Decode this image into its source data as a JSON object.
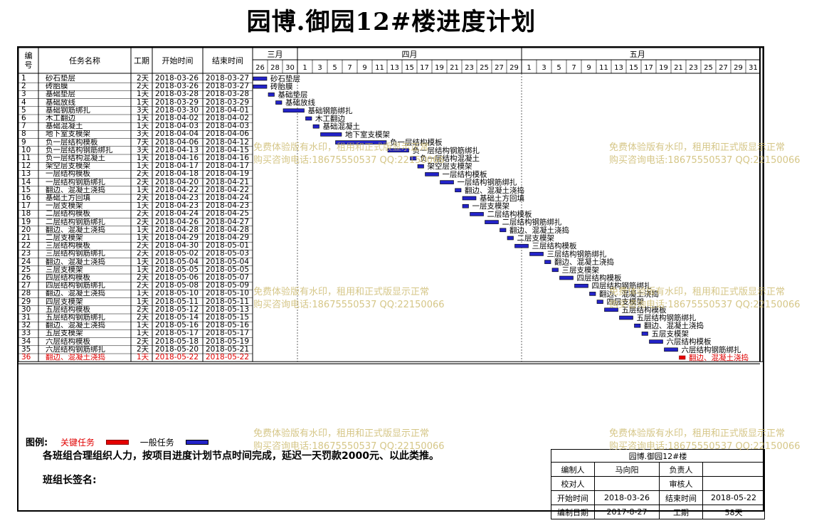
{
  "title": "园博.御园12#楼进度计划",
  "columns": {
    "no": "编号",
    "name": "任务名称",
    "dur": "工期",
    "start": "开始时间",
    "end": "结束时间"
  },
  "months": [
    {
      "label": "三月",
      "from": 0,
      "to": 6
    },
    {
      "label": "四月",
      "from": 6,
      "to": 36
    },
    {
      "label": "五月",
      "from": 36,
      "to": 67
    }
  ],
  "day_ticks": [
    "26",
    "28",
    "30",
    "1",
    "3",
    "5",
    "7",
    "9",
    "11",
    "13",
    "15",
    "17",
    "19",
    "21",
    "23",
    "25",
    "27",
    "29",
    "1",
    "3",
    "5",
    "7",
    "9",
    "11",
    "13",
    "15",
    "17",
    "19",
    "21",
    "23",
    "25",
    "27",
    "29",
    "31"
  ],
  "tasks": [
    {
      "no": "1",
      "name": "砂石垫层",
      "dur": "2天",
      "start": "2018-03-26",
      "end": "2018-03-27",
      "s": 0,
      "d": 2,
      "critical": false
    },
    {
      "no": "2",
      "name": "砖胎膜",
      "dur": "2天",
      "start": "2018-03-26",
      "end": "2018-03-27",
      "s": 0,
      "d": 2,
      "critical": false
    },
    {
      "no": "3",
      "name": "基础垫层",
      "dur": "1天",
      "start": "2018-03-28",
      "end": "2018-03-28",
      "s": 2,
      "d": 1,
      "critical": false
    },
    {
      "no": "4",
      "name": "基础放线",
      "dur": "1天",
      "start": "2018-03-29",
      "end": "2018-03-29",
      "s": 3,
      "d": 1,
      "critical": false
    },
    {
      "no": "5",
      "name": "基础钢筋绑扎",
      "dur": "3天",
      "start": "2018-03-30",
      "end": "2018-04-01",
      "s": 4,
      "d": 3,
      "critical": false
    },
    {
      "no": "6",
      "name": "木工翻边",
      "dur": "1天",
      "start": "2018-04-02",
      "end": "2018-04-02",
      "s": 7,
      "d": 1,
      "critical": false
    },
    {
      "no": "7",
      "name": "基础混凝土",
      "dur": "1天",
      "start": "2018-04-03",
      "end": "2018-04-03",
      "s": 8,
      "d": 1,
      "critical": false
    },
    {
      "no": "8",
      "name": "地下室支模架",
      "dur": "3天",
      "start": "2018-04-04",
      "end": "2018-04-06",
      "s": 9,
      "d": 3,
      "critical": false
    },
    {
      "no": "9",
      "name": "负一层结构模板",
      "dur": "7天",
      "start": "2018-04-06",
      "end": "2018-04-12",
      "s": 11,
      "d": 7,
      "critical": false
    },
    {
      "no": "10",
      "name": "负一层结构钢筋绑扎",
      "dur": "3天",
      "start": "2018-04-13",
      "end": "2018-04-15",
      "s": 18,
      "d": 3,
      "critical": false
    },
    {
      "no": "11",
      "name": "负一层结构混凝土",
      "dur": "1天",
      "start": "2018-04-16",
      "end": "2018-04-16",
      "s": 21,
      "d": 1,
      "critical": false
    },
    {
      "no": "12",
      "name": "架空层支模架",
      "dur": "1天",
      "start": "2018-04-17",
      "end": "2018-04-17",
      "s": 22,
      "d": 1,
      "critical": false
    },
    {
      "no": "13",
      "name": "一层结构模板",
      "dur": "2天",
      "start": "2018-04-18",
      "end": "2018-04-19",
      "s": 23,
      "d": 2,
      "critical": false
    },
    {
      "no": "14",
      "name": "一层结构钢筋绑扎",
      "dur": "2天",
      "start": "2018-04-20",
      "end": "2018-04-21",
      "s": 25,
      "d": 2,
      "critical": false
    },
    {
      "no": "15",
      "name": "翻边、混凝土浇捣",
      "dur": "1天",
      "start": "2018-04-22",
      "end": "2018-04-22",
      "s": 27,
      "d": 1,
      "critical": false
    },
    {
      "no": "16",
      "name": "基础土方回填",
      "dur": "2天",
      "start": "2018-04-23",
      "end": "2018-04-24",
      "s": 28,
      "d": 2,
      "critical": false
    },
    {
      "no": "17",
      "name": "一层支模架",
      "dur": "1天",
      "start": "2018-04-23",
      "end": "2018-04-23",
      "s": 28,
      "d": 1,
      "critical": false
    },
    {
      "no": "18",
      "name": "二层结构模板",
      "dur": "2天",
      "start": "2018-04-24",
      "end": "2018-04-25",
      "s": 29,
      "d": 2,
      "critical": false
    },
    {
      "no": "19",
      "name": "二层结构钢筋绑扎",
      "dur": "2天",
      "start": "2018-04-26",
      "end": "2018-04-27",
      "s": 31,
      "d": 2,
      "critical": false
    },
    {
      "no": "20",
      "name": "翻边、混凝土浇捣",
      "dur": "1天",
      "start": "2018-04-28",
      "end": "2018-04-28",
      "s": 33,
      "d": 1,
      "critical": false
    },
    {
      "no": "21",
      "name": "二层支模架",
      "dur": "1天",
      "start": "2018-04-29",
      "end": "2018-04-29",
      "s": 34,
      "d": 1,
      "critical": false
    },
    {
      "no": "22",
      "name": "三层结构模板",
      "dur": "2天",
      "start": "2018-04-30",
      "end": "2018-05-01",
      "s": 35,
      "d": 2,
      "critical": false
    },
    {
      "no": "23",
      "name": "三层结构钢筋绑扎",
      "dur": "2天",
      "start": "2018-05-02",
      "end": "2018-05-03",
      "s": 37,
      "d": 2,
      "critical": false
    },
    {
      "no": "24",
      "name": "翻边、混凝土浇捣",
      "dur": "1天",
      "start": "2018-05-04",
      "end": "2018-05-04",
      "s": 39,
      "d": 1,
      "critical": false
    },
    {
      "no": "25",
      "name": "三层支模架",
      "dur": "1天",
      "start": "2018-05-05",
      "end": "2018-05-05",
      "s": 40,
      "d": 1,
      "critical": false
    },
    {
      "no": "26",
      "name": "四层结构模板",
      "dur": "2天",
      "start": "2018-05-06",
      "end": "2018-05-07",
      "s": 41,
      "d": 2,
      "critical": false
    },
    {
      "no": "27",
      "name": "四层结构钢筋绑扎",
      "dur": "2天",
      "start": "2018-05-08",
      "end": "2018-05-09",
      "s": 43,
      "d": 2,
      "critical": false
    },
    {
      "no": "28",
      "name": "翻边、混凝土浇捣",
      "dur": "1天",
      "start": "2018-05-10",
      "end": "2018-05-10",
      "s": 45,
      "d": 1,
      "critical": false
    },
    {
      "no": "29",
      "name": "四层支模架",
      "dur": "1天",
      "start": "2018-05-11",
      "end": "2018-05-11",
      "s": 46,
      "d": 1,
      "critical": false
    },
    {
      "no": "30",
      "name": "五层结构模板",
      "dur": "2天",
      "start": "2018-05-12",
      "end": "2018-05-13",
      "s": 47,
      "d": 2,
      "critical": false
    },
    {
      "no": "31",
      "name": "五层结构钢筋绑扎",
      "dur": "2天",
      "start": "2018-05-14",
      "end": "2018-05-15",
      "s": 49,
      "d": 2,
      "critical": false
    },
    {
      "no": "32",
      "name": "翻边、混凝土浇捣",
      "dur": "1天",
      "start": "2018-05-16",
      "end": "2018-05-16",
      "s": 51,
      "d": 1,
      "critical": false
    },
    {
      "no": "33",
      "name": "五层支模架",
      "dur": "1天",
      "start": "2018-05-17",
      "end": "2018-05-17",
      "s": 52,
      "d": 1,
      "critical": false
    },
    {
      "no": "34",
      "name": "六层结构模板",
      "dur": "2天",
      "start": "2018-05-18",
      "end": "2018-05-19",
      "s": 53,
      "d": 2,
      "critical": false
    },
    {
      "no": "35",
      "name": "六层结构钢筋绑扎",
      "dur": "2天",
      "start": "2018-05-20",
      "end": "2018-05-21",
      "s": 55,
      "d": 2,
      "critical": false
    },
    {
      "no": "36",
      "name": "翻边、混凝土浇捣",
      "dur": "1天",
      "start": "2018-05-22",
      "end": "2018-05-22",
      "s": 57,
      "d": 1,
      "critical": true
    }
  ],
  "legend": {
    "label": "图例:",
    "critical": "关键任务",
    "normal": "一般任务"
  },
  "colors": {
    "normal_bar": "#2323c8",
    "critical_bar": "#e60000"
  },
  "note": "各班组合理组织人力，按项目进度计划节点时间完成，延迟一天罚款2000元、以此类推。",
  "sign": "班组长签名:",
  "watermark": {
    "line1": "免费体验版有水印，租用和正式版显示正常",
    "line2": "购买咨询电话:18675550537 QQ:22150066"
  },
  "info": {
    "project": "园博.御园12#楼",
    "compiler_label": "编制人",
    "compiler": "马向阳",
    "manager_label": "负责人",
    "manager": "",
    "checker_label": "校对人",
    "checker": "",
    "reviewer_label": "审核人",
    "reviewer": "",
    "start_label": "开始时间",
    "start": "2018-03-26",
    "end_label": "结束时间",
    "end": "2018-05-22",
    "date_label": "编制日期",
    "date": "2017-8-27",
    "period_label": "工期",
    "period": "58天"
  }
}
